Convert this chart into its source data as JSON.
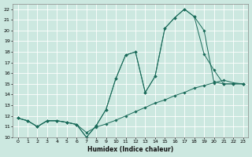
{
  "xlabel": "Humidex (Indice chaleur)",
  "bg_color": "#cce8e0",
  "grid_color": "#ffffff",
  "line_color": "#1a6b5a",
  "xlim": [
    -0.5,
    23.5
  ],
  "ylim": [
    10,
    22.5
  ],
  "xticks": [
    0,
    1,
    2,
    3,
    4,
    5,
    6,
    7,
    8,
    9,
    10,
    11,
    12,
    13,
    14,
    15,
    16,
    17,
    18,
    19,
    20,
    21,
    22,
    23
  ],
  "yticks": [
    10,
    11,
    12,
    13,
    14,
    15,
    16,
    17,
    18,
    19,
    20,
    21,
    22
  ],
  "line1_x": [
    0,
    1,
    2,
    3,
    4,
    5,
    6,
    7,
    8,
    9,
    10,
    11,
    12,
    13,
    14,
    15,
    16,
    17,
    18,
    19,
    20,
    21,
    22,
    23
  ],
  "line1_y": [
    11.8,
    11.55,
    11.0,
    11.55,
    11.55,
    11.4,
    11.2,
    10.45,
    10.95,
    11.25,
    11.6,
    12.0,
    12.4,
    12.8,
    13.2,
    13.5,
    13.9,
    14.2,
    14.6,
    14.85,
    15.1,
    15.35,
    15.1,
    15.0
  ],
  "line2_x": [
    0,
    1,
    2,
    3,
    4,
    5,
    6,
    7,
    8,
    9,
    10,
    11,
    12,
    13,
    14,
    15,
    16,
    17,
    18,
    19,
    20,
    21,
    22,
    23
  ],
  "line2_y": [
    11.8,
    11.55,
    11.0,
    11.55,
    11.55,
    11.4,
    11.2,
    10.0,
    11.1,
    12.6,
    15.5,
    17.7,
    18.0,
    14.2,
    15.7,
    20.2,
    21.2,
    22.0,
    21.3,
    20.0,
    15.2,
    15.0,
    15.0,
    15.0
  ],
  "line3_x": [
    0,
    1,
    2,
    3,
    4,
    5,
    6,
    7,
    8,
    9,
    10,
    11,
    12,
    13,
    14,
    15,
    16,
    17,
    18,
    19,
    20,
    21,
    22,
    23
  ],
  "line3_y": [
    11.8,
    11.55,
    11.0,
    11.55,
    11.55,
    11.4,
    11.2,
    10.0,
    11.1,
    12.6,
    15.5,
    17.7,
    18.0,
    14.2,
    15.7,
    20.2,
    21.2,
    22.0,
    21.3,
    17.8,
    16.3,
    15.0,
    15.0,
    15.0
  ]
}
